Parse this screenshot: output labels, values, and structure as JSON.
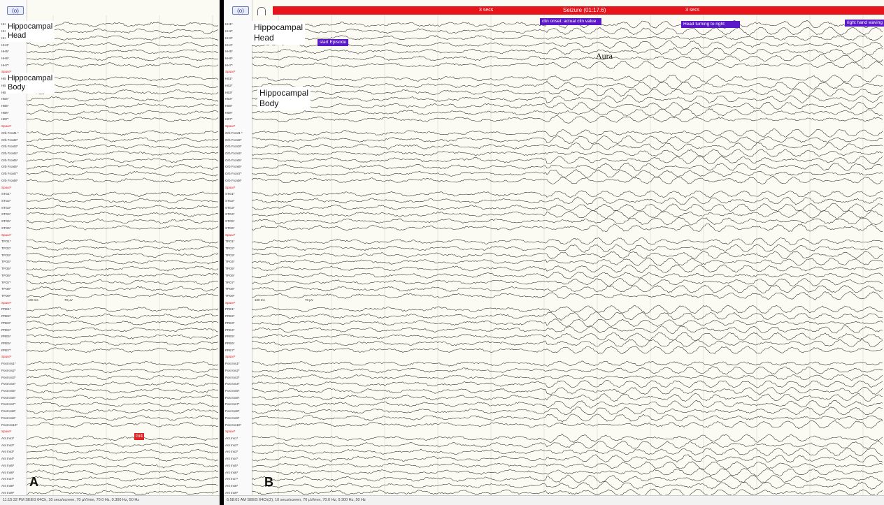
{
  "panel_a": {
    "letter": "A",
    "annotations": {
      "head": "Hippocampal\nHead",
      "body": "Hippocampal\nBody"
    },
    "tag": "Gr4",
    "scale_time": "100 ms",
    "scale_amp": "70 µV",
    "footer": "11:15:32 PM SEEG 64Ch, 10 secs/screen, 70 µV/mm, 70.0 Hz, 0.300 Hz, 50 Hz",
    "nav_icon": "(o)"
  },
  "panel_b": {
    "letter": "B",
    "annotations": {
      "head": "Hippocampal\nHead",
      "body": "Hippocampal\nBody",
      "aura": "Aura"
    },
    "seizure_label": "Seizure (01:17.6)",
    "seizure_sub_left": "3 secs",
    "seizure_sub_right": "3 secs",
    "events": [
      "start Episode",
      "clin onset: actual clin value",
      "Head turning to right",
      "right hand waving"
    ],
    "scale_time": "100 ms",
    "scale_amp": "70 µV",
    "footer": "6:58:01 AM SEEG 64Ch(2), 10 secs/screen, 70 µV/mm, 70.0 Hz, 0.300 Hz, 50 Hz",
    "nav_icon": "(o)"
  },
  "channels": [
    "HH1*",
    "HH2*",
    "HH3*",
    "HH4*",
    "HH5*",
    "HH6*",
    "HH7*",
    "Space*",
    "HB1*",
    "HB2*",
    "HB3*",
    "HB4*",
    "HB5*",
    "HB6*",
    "HB7*",
    "Space*",
    "Orb Front1 *",
    "Orb Front2*",
    "Orb Front3*",
    "Orb Front4*",
    "Orb Front5*",
    "Orb Front6*",
    "Orb Front7*",
    "Orb Front8*",
    "Space*",
    "STG1*",
    "STG2*",
    "STG3*",
    "STG4*",
    "STG5*",
    "STG6*",
    "Space*",
    "TPO1*",
    "TPO2*",
    "TPO3*",
    "TPO4*",
    "TPO5*",
    "TPO6*",
    "TPO7*",
    "TPO8*",
    "TPO9*",
    "Space*",
    "PRE1*",
    "PRE2*",
    "PRE3*",
    "PRE4*",
    "PRE5*",
    "PRE6*",
    "PRE7*",
    "Space*",
    "Post Ins1*",
    "Post Ins2*",
    "Post Ins3*",
    "Post Ins4*",
    "Post Ins5*",
    "Post Ins6*",
    "Post Ins7*",
    "Post Ins8*",
    "Post Ins9*",
    "Post Ins10*",
    "Space*",
    "Ant Ins1*",
    "Ant Ins2*",
    "Ant Ins3*",
    "Ant Ins4*",
    "Ant Ins5*",
    "Ant Ins6*",
    "Ant Ins7*",
    "Ant Ins8*",
    "Ant Ins9*"
  ],
  "colors": {
    "seizure_bar": "#e8141b",
    "event_tag": "#5a18c8",
    "space_label": "#d11111",
    "trace": "#2a2a2a",
    "background": "#fbfbf3"
  }
}
